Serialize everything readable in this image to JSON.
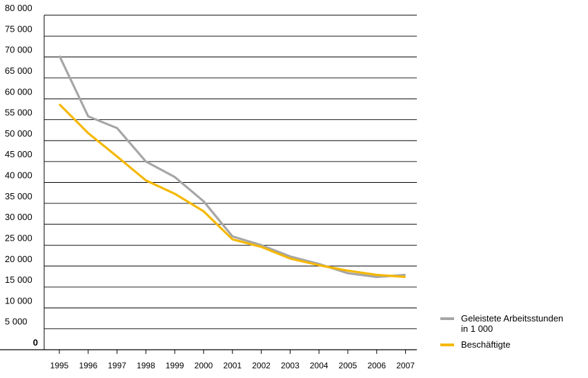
{
  "chart_data": {
    "type": "line",
    "title": "",
    "xlabel": "",
    "ylabel": "",
    "x": [
      "1995",
      "1996",
      "1997",
      "1998",
      "1999",
      "2000",
      "2001",
      "2002",
      "2003",
      "2004",
      "2005",
      "2006",
      "2007"
    ],
    "ylim": [
      0,
      80000
    ],
    "y_ticks": [
      "0",
      "5 000",
      "10 000",
      "15 000",
      "20 000",
      "25 000",
      "30 000",
      "35 000",
      "40 000",
      "45 000",
      "50 000",
      "55 000",
      "60 000",
      "65 000",
      "70 000",
      "75 000",
      "80 000"
    ],
    "grid": true,
    "legend_position": "bottom-right",
    "series": [
      {
        "name": "Geleistete Arbeitsstunden in 1 000",
        "legend_lines": [
          "Geleistete Arbeitsstunden",
          "in 1 000"
        ],
        "color": "#a6a6a6",
        "values": [
          70300,
          55800,
          53000,
          45000,
          41300,
          35500,
          27100,
          25000,
          22300,
          20500,
          18300,
          17400,
          17900
        ]
      },
      {
        "name": "Beschäftigte",
        "legend_lines": [
          "Beschäftigte"
        ],
        "color": "#f5b800",
        "values": [
          58700,
          51800,
          46200,
          40500,
          37300,
          33100,
          26400,
          24600,
          21800,
          20200,
          18900,
          17900,
          17400
        ]
      }
    ]
  }
}
